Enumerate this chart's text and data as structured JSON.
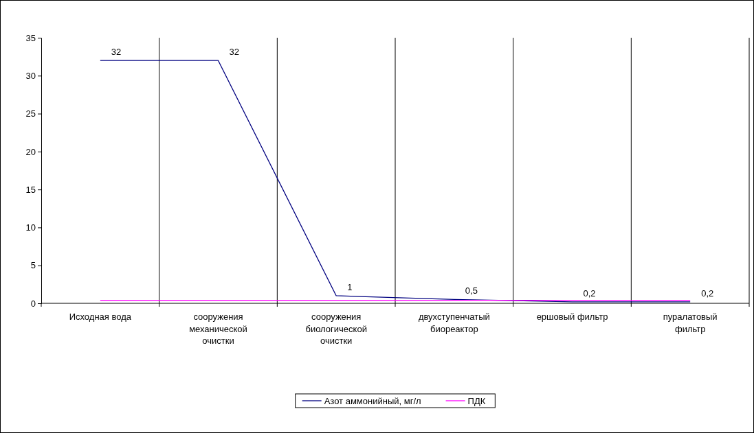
{
  "chart_data": {
    "type": "line",
    "categories": [
      "Исходная вода",
      "сооружения механической очистки",
      "сооружения биологической очистки",
      "двухступенчатый биореактор",
      "ершовый фильтр",
      "пуралатовый фильтр"
    ],
    "series": [
      {
        "name": "Азот аммонийный, мг/л",
        "color": "#000080",
        "values": [
          32,
          32,
          1,
          0.5,
          0.2,
          0.2
        ],
        "value_labels": [
          "32",
          "32",
          "1",
          "0,5",
          "0,2",
          "0,2"
        ]
      },
      {
        "name": "ПДК",
        "color": "#ff00ff",
        "values": [
          0.4,
          0.4,
          0.4,
          0.4,
          0.4,
          0.4
        ]
      }
    ],
    "ylim": [
      0,
      35
    ],
    "yticks": [
      0,
      5,
      10,
      15,
      20,
      25,
      30,
      35
    ],
    "grid": "x",
    "legend": "bottom",
    "marker": "none",
    "line_style": "solid"
  }
}
